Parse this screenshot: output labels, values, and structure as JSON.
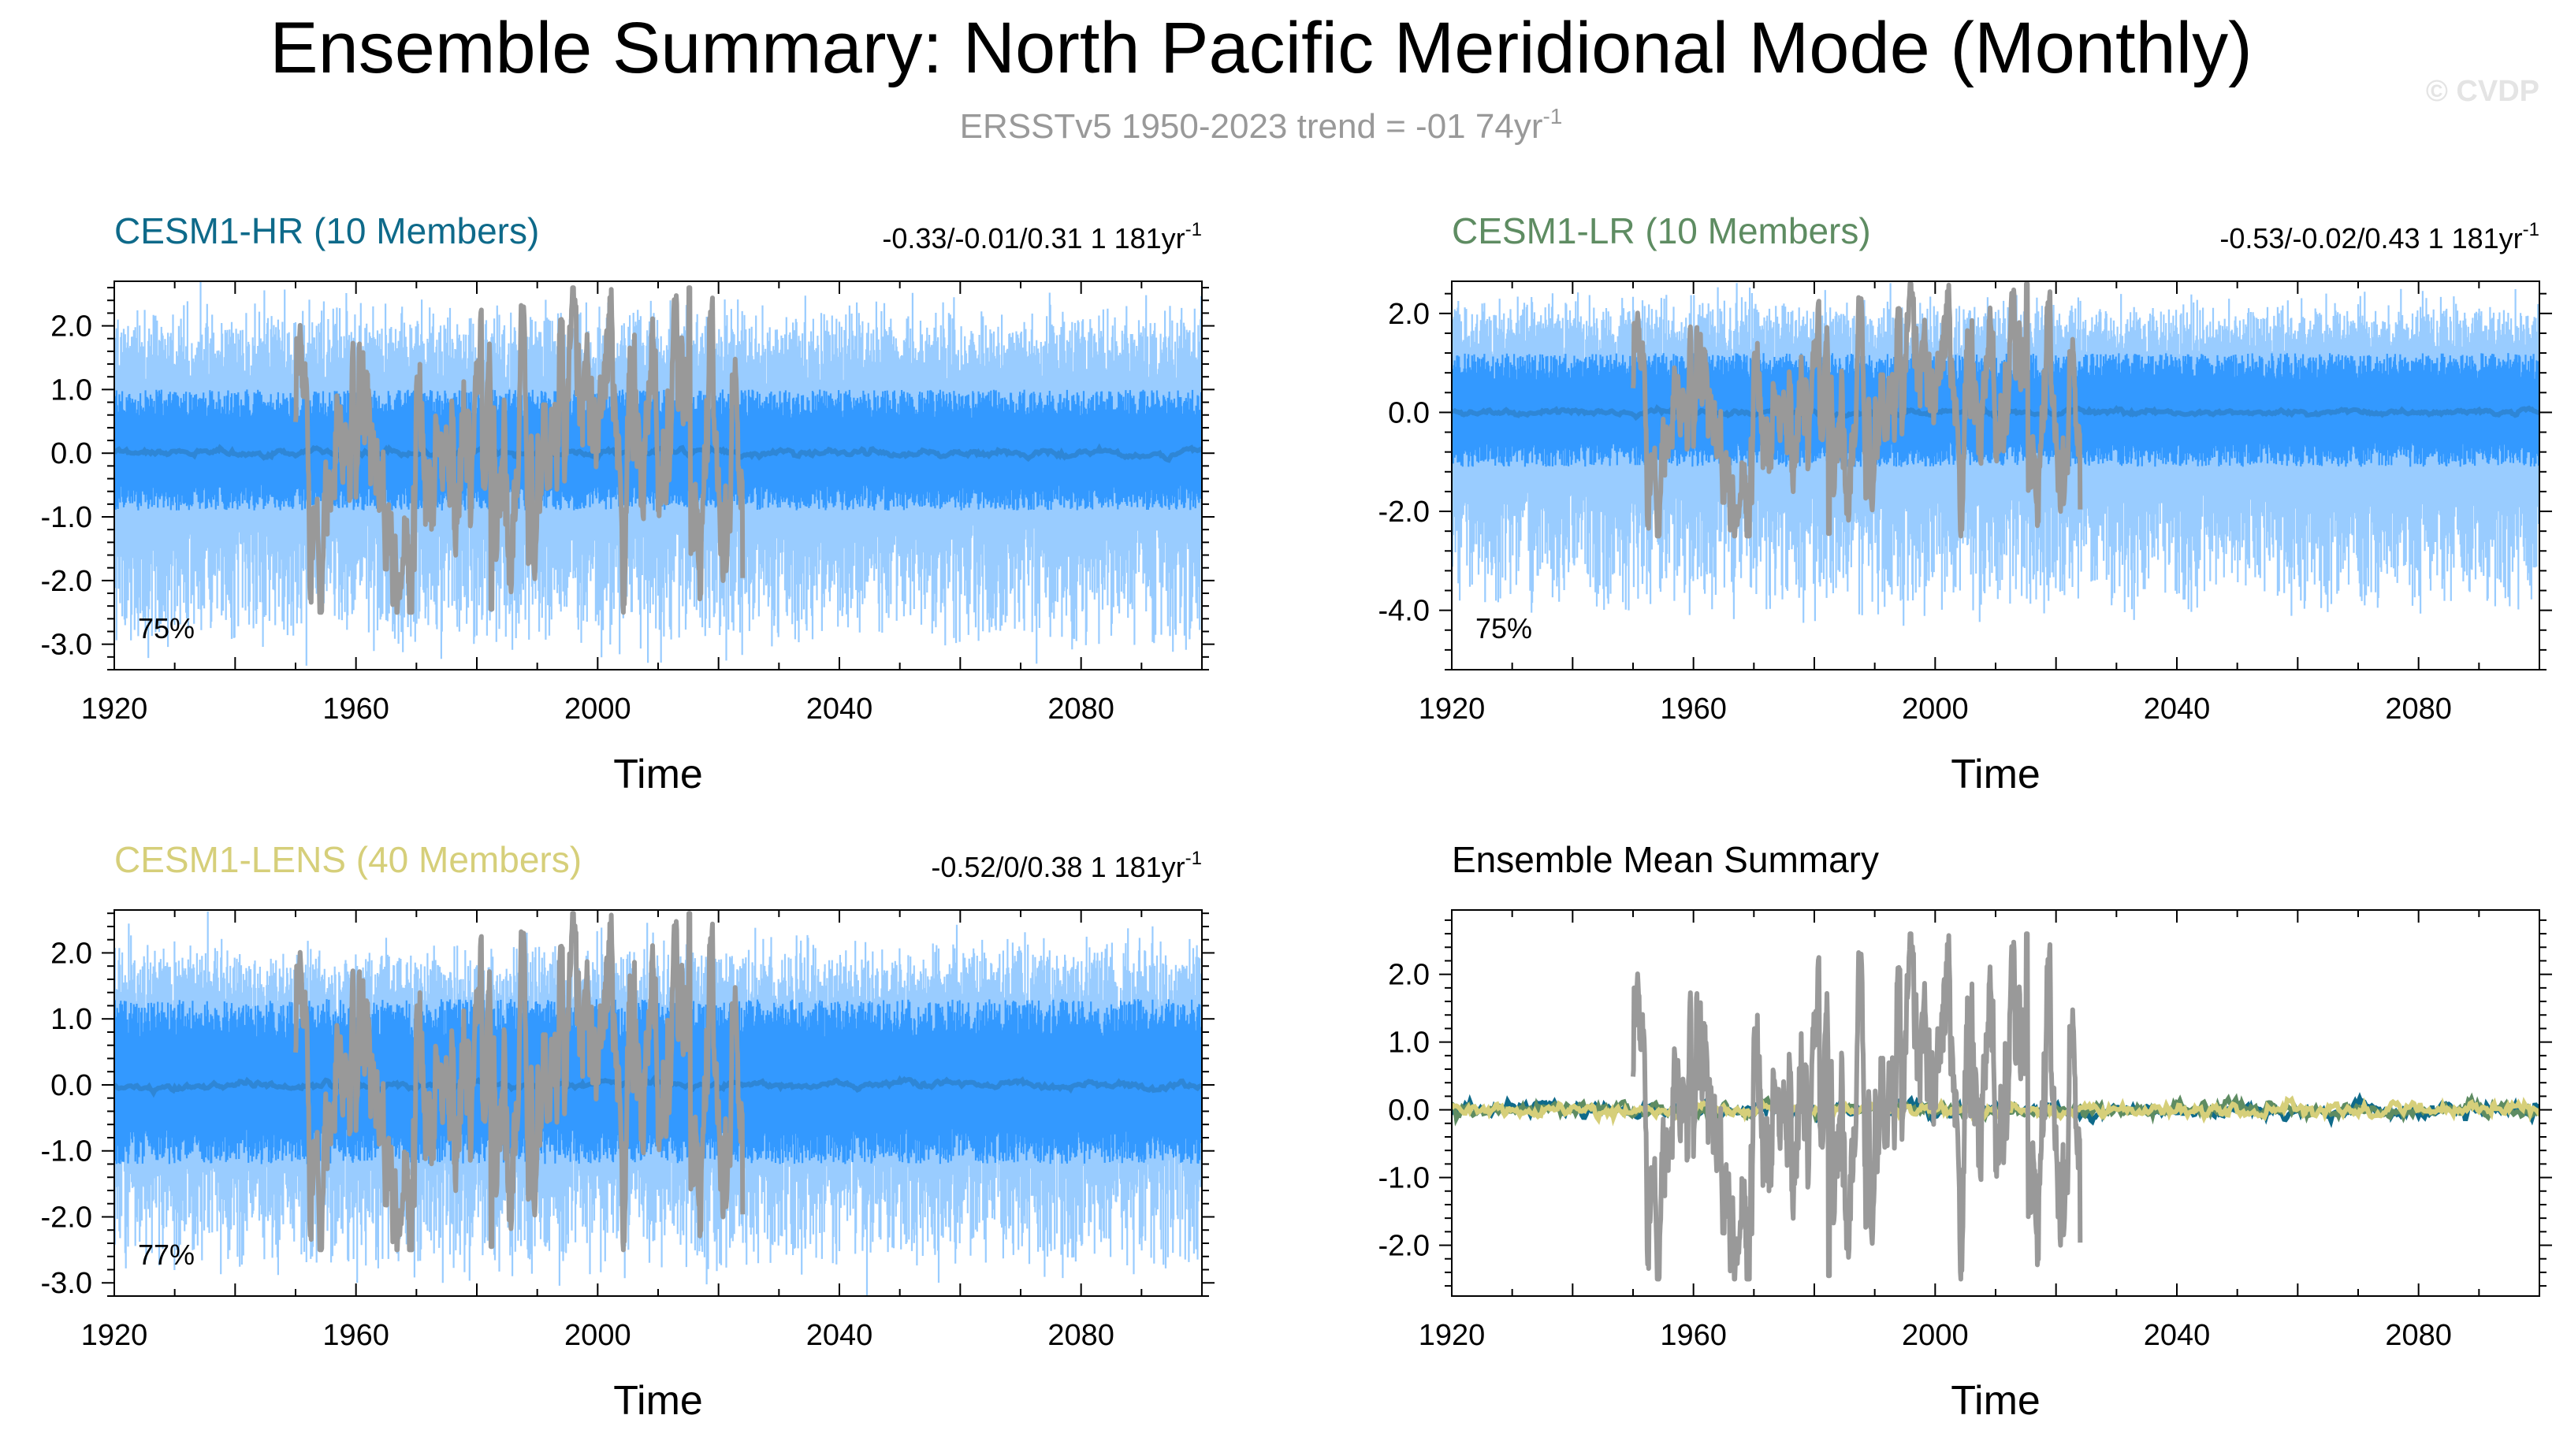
{
  "header": {
    "title": "Ensemble Summary: North Pacific Meridional Mode (Monthly)",
    "subtitle_main": "ERSSTv5 1950-2023 trend = -01 74yr",
    "subtitle_sup": "-1",
    "watermark": "© CVDP"
  },
  "colors": {
    "obs": "#999999",
    "band_outer": "#99ccff",
    "band_inner": "#3399ff",
    "ens_mean": "#2e86d6",
    "hr": "#0e6a8a",
    "lr": "#5e8c62",
    "lens": "#d6cf7a"
  },
  "chart_data": [
    {
      "id": "cesm1-hr",
      "type": "line",
      "title": "CESM1-HR (10 Members)",
      "title_color": "#0e6a8a",
      "stats": "-0.33/-0.01/0.31 1 181yr",
      "stats_sup": "-1",
      "percent_label": "75%",
      "xlabel": "Time",
      "xlim": [
        1920,
        2100
      ],
      "ylim": [
        -3.4,
        2.7
      ],
      "xticks": [
        1920,
        1960,
        2000,
        2040,
        2080
      ],
      "yticks": [
        2.0,
        1.0,
        0.0,
        -1.0,
        -2.0,
        -3.0
      ],
      "ytick_labels": [
        "2.0",
        "1.0",
        "0.0",
        "-1.0",
        "-2.0",
        "-3.0"
      ],
      "series": [
        {
          "name": "ensemble range",
          "x_range": [
            1920,
            2100
          ],
          "band_outer": [
            -2.9,
            2.0
          ],
          "band_inner": [
            -0.9,
            1.0
          ]
        },
        {
          "name": "ensemble mean",
          "x_range": [
            1920,
            2100
          ],
          "values_approx": 0.0
        },
        {
          "name": "ERSSTv5 observed",
          "x_range": [
            1950,
            2023
          ],
          "min": -2.5,
          "max": 2.6
        }
      ]
    },
    {
      "id": "cesm1-lr",
      "type": "line",
      "title": "CESM1-LR (10 Members)",
      "title_color": "#5e8c62",
      "stats": "-0.53/-0.02/0.43 1 181yr",
      "stats_sup": "-1",
      "percent_label": "75%",
      "xlabel": "Time",
      "xlim": [
        1920,
        2100
      ],
      "ylim": [
        -5.2,
        2.65
      ],
      "xticks": [
        1920,
        1960,
        2000,
        2040,
        2080
      ],
      "yticks": [
        2.0,
        0.0,
        -2.0,
        -4.0
      ],
      "ytick_labels": [
        "2.0",
        "0.0",
        "-2.0",
        "-4.0"
      ],
      "series": [
        {
          "name": "ensemble range",
          "x_range": [
            1920,
            2100
          ],
          "band_outer": [
            -3.9,
            2.0
          ],
          "band_inner": [
            -1.1,
            1.2
          ]
        },
        {
          "name": "ensemble mean",
          "x_range": [
            1920,
            2100
          ],
          "values_approx": 0.0
        },
        {
          "name": "ERSSTv5 observed",
          "x_range": [
            1950,
            2023
          ],
          "min": -2.5,
          "max": 2.6
        }
      ]
    },
    {
      "id": "cesm1-lens",
      "type": "line",
      "title": "CESM1-LENS (40 Members)",
      "title_color": "#d6cf7a",
      "stats": "-0.52/0/0.38 1 181yr",
      "stats_sup": "-1",
      "percent_label": "77%",
      "xlabel": "Time",
      "xlim": [
        1920,
        2100
      ],
      "ylim": [
        -3.2,
        2.65
      ],
      "xticks": [
        1920,
        1960,
        2000,
        2040,
        2080
      ],
      "yticks": [
        2.0,
        1.0,
        0.0,
        -1.0,
        -2.0,
        -3.0
      ],
      "ytick_labels": [
        "2.0",
        "1.0",
        "0.0",
        "-1.0",
        "-2.0",
        "-3.0"
      ],
      "series": [
        {
          "name": "ensemble range",
          "x_range": [
            1920,
            2100
          ],
          "band_outer": [
            -2.7,
            1.9
          ],
          "band_inner": [
            -1.2,
            1.3
          ]
        },
        {
          "name": "ensemble mean",
          "x_range": [
            1920,
            2100
          ],
          "values_approx": 0.0
        },
        {
          "name": "ERSSTv5 observed",
          "x_range": [
            1950,
            2023
          ],
          "min": -2.5,
          "max": 2.6
        }
      ]
    },
    {
      "id": "ensemble-mean-summary",
      "type": "line",
      "title": "Ensemble Mean Summary",
      "title_color": "#000000",
      "stats": "",
      "stats_sup": "",
      "percent_label": "",
      "xlabel": "Time",
      "xlim": [
        1920,
        2100
      ],
      "ylim": [
        -2.75,
        2.95
      ],
      "xticks": [
        1920,
        1960,
        2000,
        2040,
        2080
      ],
      "yticks": [
        2.0,
        1.0,
        0.0,
        -1.0,
        -2.0
      ],
      "ytick_labels": [
        "2.0",
        "1.0",
        "0.0",
        "-1.0",
        "-2.0"
      ],
      "series": [
        {
          "name": "CESM1-HR ensemble mean",
          "x_range": [
            1920,
            2100
          ],
          "values_approx": 0.0
        },
        {
          "name": "CESM1-LR ensemble mean",
          "x_range": [
            1920,
            2100
          ],
          "values_approx": 0.0
        },
        {
          "name": "CESM1-LENS ensemble mean",
          "x_range": [
            1920,
            2100
          ],
          "values_approx": 0.0
        },
        {
          "name": "ERSSTv5 observed",
          "x_range": [
            1950,
            2023
          ],
          "min": -2.5,
          "max": 2.6
        }
      ]
    }
  ]
}
